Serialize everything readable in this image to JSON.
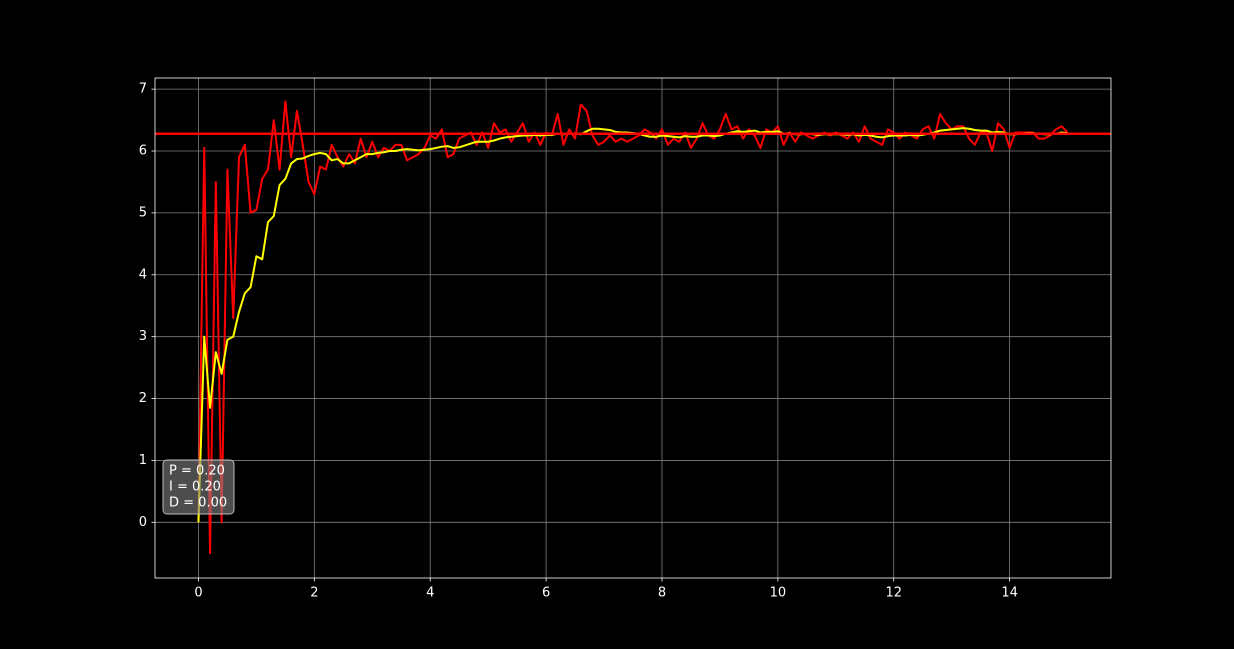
{
  "chart_data": {
    "type": "line",
    "x": [
      0,
      0.1,
      0.2,
      0.3,
      0.4,
      0.5,
      0.6,
      0.7,
      0.8,
      0.9,
      1,
      1.1,
      1.2,
      1.3,
      1.4,
      1.5,
      1.6,
      1.7,
      1.8,
      1.9,
      2,
      2.1,
      2.2,
      2.3,
      2.4,
      2.5,
      2.6,
      2.7,
      2.8,
      2.9,
      3,
      3.1,
      3.2,
      3.3,
      3.4,
      3.5,
      3.6,
      3.7,
      3.8,
      3.9,
      4,
      4.1,
      4.2,
      4.3,
      4.4,
      4.5,
      4.6,
      4.7,
      4.8,
      4.9,
      5,
      5.1,
      5.2,
      5.3,
      5.4,
      5.5,
      5.6,
      5.7,
      5.8,
      5.9,
      6,
      6.1,
      6.2,
      6.3,
      6.4,
      6.5,
      6.6,
      6.7,
      6.8,
      6.9,
      7,
      7.1,
      7.2,
      7.3,
      7.4,
      7.5,
      7.6,
      7.7,
      7.8,
      7.9,
      8,
      8.1,
      8.2,
      8.3,
      8.4,
      8.5,
      8.6,
      8.7,
      8.8,
      8.9,
      9,
      9.1,
      9.2,
      9.3,
      9.4,
      9.5,
      9.6,
      9.7,
      9.8,
      9.9,
      10,
      10.1,
      10.2,
      10.3,
      10.4,
      10.5,
      10.6,
      10.7,
      10.8,
      10.9,
      11,
      11.1,
      11.2,
      11.3,
      11.4,
      11.5,
      11.6,
      11.7,
      11.8,
      11.9,
      12,
      12.1,
      12.2,
      12.3,
      12.4,
      12.5,
      12.6,
      12.7,
      12.8,
      12.9,
      13,
      13.1,
      13.2,
      13.3,
      13.4,
      13.5,
      13.6,
      13.7,
      13.8,
      13.9,
      14,
      14.1,
      14.2,
      14.3,
      14.4,
      14.5,
      14.6,
      14.7,
      14.8,
      14.9,
      15
    ],
    "series": [
      {
        "color": "#ff0000",
        "values": [
          0,
          6.05,
          -0.5,
          5.5,
          0.0,
          5.7,
          3.3,
          5.9,
          6.1,
          5.0,
          5.05,
          5.55,
          5.7,
          6.5,
          5.7,
          6.8,
          5.9,
          6.65,
          6.1,
          5.5,
          5.3,
          5.75,
          5.7,
          6.1,
          5.9,
          5.75,
          5.95,
          5.8,
          6.2,
          5.9,
          6.15,
          5.9,
          6.05,
          6.0,
          6.1,
          6.1,
          5.85,
          5.9,
          5.95,
          6.05,
          6.25,
          6.2,
          6.35,
          5.9,
          5.95,
          6.2,
          6.25,
          6.3,
          6.1,
          6.3,
          6.05,
          6.45,
          6.3,
          6.35,
          6.15,
          6.3,
          6.45,
          6.15,
          6.3,
          6.1,
          6.3,
          6.25,
          6.6,
          6.1,
          6.35,
          6.2,
          6.75,
          6.65,
          6.25,
          6.1,
          6.15,
          6.25,
          6.15,
          6.2,
          6.15,
          6.2,
          6.25,
          6.35,
          6.3,
          6.2,
          6.35,
          6.1,
          6.2,
          6.15,
          6.3,
          6.05,
          6.2,
          6.45,
          6.25,
          6.2,
          6.35,
          6.6,
          6.35,
          6.4,
          6.2,
          6.35,
          6.25,
          6.05,
          6.35,
          6.3,
          6.4,
          6.1,
          6.3,
          6.15,
          6.3,
          6.25,
          6.2,
          6.25,
          6.3,
          6.25,
          6.3,
          6.25,
          6.2,
          6.3,
          6.15,
          6.4,
          6.2,
          6.15,
          6.1,
          6.35,
          6.3,
          6.2,
          6.3,
          6.25,
          6.2,
          6.35,
          6.4,
          6.2,
          6.6,
          6.45,
          6.35,
          6.4,
          6.4,
          6.2,
          6.1,
          6.3,
          6.3,
          6.0,
          6.45,
          6.35,
          6.05,
          6.3,
          6.3,
          6.3,
          6.3,
          6.2,
          6.2,
          6.25,
          6.35,
          6.4,
          6.3
        ]
      },
      {
        "color": "#ffff00",
        "values": [
          0,
          3.0,
          1.85,
          2.75,
          2.4,
          2.95,
          3.0,
          3.4,
          3.7,
          3.8,
          4.3,
          4.25,
          4.85,
          4.95,
          5.45,
          5.55,
          5.8,
          5.87,
          5.88,
          5.92,
          5.95,
          5.97,
          5.95,
          5.85,
          5.87,
          5.8,
          5.8,
          5.85,
          5.9,
          5.95,
          5.95,
          5.97,
          5.98,
          6.0,
          6.0,
          6.02,
          6.03,
          6.02,
          6.01,
          6.02,
          6.03,
          6.05,
          6.07,
          6.08,
          6.05,
          6.06,
          6.09,
          6.12,
          6.15,
          6.15,
          6.15,
          6.17,
          6.2,
          6.22,
          6.23,
          6.24,
          6.25,
          6.25,
          6.26,
          6.25,
          6.26,
          6.26,
          6.28,
          6.27,
          6.28,
          6.28,
          6.27,
          6.32,
          6.36,
          6.36,
          6.35,
          6.34,
          6.31,
          6.3,
          6.3,
          6.29,
          6.28,
          6.25,
          6.23,
          6.23,
          6.25,
          6.24,
          6.23,
          6.22,
          6.24,
          6.23,
          6.23,
          6.25,
          6.25,
          6.24,
          6.25,
          6.28,
          6.3,
          6.32,
          6.31,
          6.32,
          6.33,
          6.3,
          6.31,
          6.31,
          6.32,
          6.28,
          6.29,
          6.27,
          6.27,
          6.28,
          6.27,
          6.26,
          6.27,
          6.27,
          6.27,
          6.27,
          6.26,
          6.27,
          6.25,
          6.26,
          6.25,
          6.23,
          6.22,
          6.24,
          6.25,
          6.25,
          6.25,
          6.26,
          6.25,
          6.26,
          6.28,
          6.3,
          6.33,
          6.34,
          6.35,
          6.36,
          6.37,
          6.36,
          6.34,
          6.33,
          6.33,
          6.3,
          6.31,
          6.3,
          6.27,
          6.27,
          6.28,
          6.29,
          6.29,
          6.28,
          6.27,
          6.27,
          6.28,
          6.3,
          6.29
        ]
      }
    ],
    "hline": {
      "value": 6.28,
      "color": "#ff0000"
    },
    "annotation": [
      "P = 0.20",
      "I = 0.20",
      "D = 0.00"
    ],
    "xlim": [
      -0.75,
      15.75
    ],
    "ylim": [
      -0.9,
      7.18
    ],
    "xticks": [
      0,
      2,
      4,
      6,
      8,
      10,
      12,
      14
    ],
    "yticks": [
      0,
      1,
      2,
      3,
      4,
      5,
      6,
      7
    ],
    "grid": true
  }
}
